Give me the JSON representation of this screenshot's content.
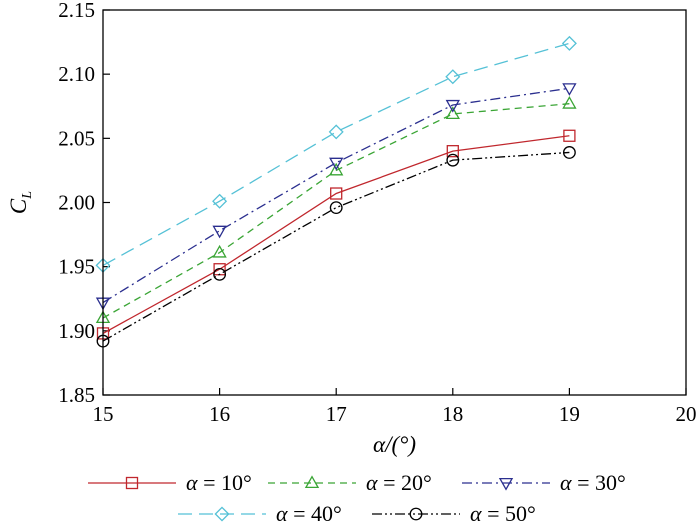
{
  "chart_data": {
    "type": "line",
    "x": [
      15,
      16,
      17,
      18,
      19
    ],
    "series": [
      {
        "name": "α = 10°",
        "greek": "α",
        "rest": " = 10°",
        "values": [
          1.898,
          1.948,
          2.007,
          2.04,
          2.052
        ],
        "color": "#c0272d",
        "dash": "",
        "marker": "square"
      },
      {
        "name": "α = 20°",
        "greek": "α",
        "rest": " = 20°",
        "values": [
          1.91,
          1.961,
          2.025,
          2.069,
          2.077
        ],
        "color": "#3aa535",
        "dash": "7,5",
        "marker": "triangle-up"
      },
      {
        "name": "α = 30°",
        "greek": "α",
        "rest": " = 30°",
        "values": [
          1.922,
          1.978,
          2.031,
          2.076,
          2.089
        ],
        "color": "#2b2f8f",
        "dash": "10,4,2,4",
        "marker": "triangle-down"
      },
      {
        "name": "α = 40°",
        "greek": "α",
        "rest": " = 40°",
        "values": [
          1.951,
          2.001,
          2.055,
          2.098,
          2.124
        ],
        "color": "#55c1d6",
        "dash": "14,7",
        "marker": "diamond"
      },
      {
        "name": "α = 50°",
        "greek": "α",
        "rest": " = 50°",
        "values": [
          1.892,
          1.944,
          1.996,
          2.033,
          2.039
        ],
        "color": "#000000",
        "dash": "10,3,2,3,2,3",
        "marker": "circle"
      }
    ],
    "xlim": [
      15,
      20
    ],
    "ylim": [
      1.85,
      2.15
    ],
    "xticks": [
      "15",
      "16",
      "17",
      "18",
      "19",
      "20"
    ],
    "yticks": [
      "1.85",
      "1.90",
      "1.95",
      "2.00",
      "2.05",
      "2.10",
      "2.15"
    ],
    "xlabel": "α/(°)",
    "ylabel": "C",
    "ylabel_sub": "L",
    "legend_position": "bottom",
    "grid": false
  }
}
